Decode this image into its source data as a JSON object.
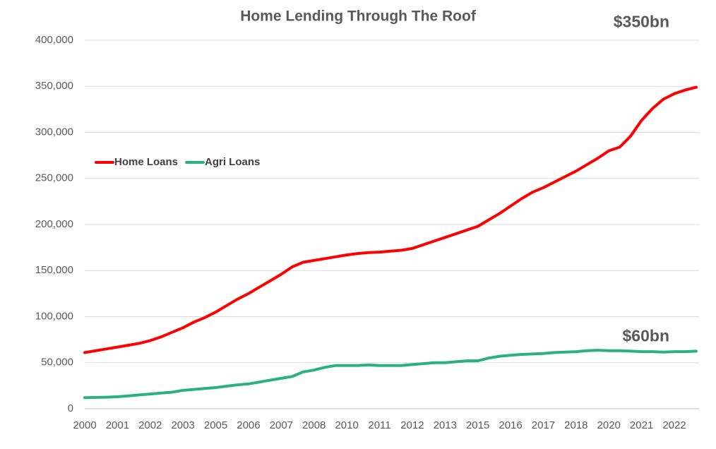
{
  "chart_data": {
    "type": "line",
    "title": "Home  Lending Through The Roof",
    "categories": [
      "2000",
      null,
      null,
      "2001",
      null,
      null,
      "2002",
      null,
      null,
      "2003",
      null,
      null,
      "2005",
      null,
      null,
      "2006",
      null,
      null,
      "2007",
      null,
      null,
      "2008",
      null,
      null,
      "2010",
      null,
      null,
      "2011",
      null,
      null,
      "2012",
      null,
      null,
      "2013",
      null,
      null,
      "2015",
      null,
      null,
      "2016",
      null,
      null,
      "2017",
      null,
      null,
      "2018",
      null,
      null,
      "2020",
      null,
      null,
      "2021",
      null,
      null,
      "2022",
      null,
      null
    ],
    "series": [
      {
        "name": "Home Loans",
        "color": "#ff0000",
        "values": [
          61000,
          63000,
          65000,
          67000,
          69000,
          71000,
          74000,
          78000,
          83000,
          88000,
          94000,
          99000,
          105000,
          112000,
          119000,
          125000,
          132000,
          139000,
          146000,
          154000,
          159000,
          161000,
          163000,
          165000,
          167000,
          168500,
          169500,
          170000,
          171000,
          172000,
          174000,
          178000,
          182000,
          186000,
          190000,
          194000,
          198000,
          205000,
          212000,
          220000,
          228000,
          235000,
          240000,
          246000,
          252000,
          258000,
          265000,
          272000,
          280000,
          284000,
          296000,
          313000,
          326000,
          336000,
          342000,
          346000,
          349000
        ]
      },
      {
        "name": "Agri Loans",
        "color": "#2ab085",
        "values": [
          12000,
          12300,
          12600,
          13000,
          14000,
          15000,
          16000,
          17000,
          18000,
          20000,
          21000,
          22000,
          23000,
          24500,
          26000,
          27000,
          29000,
          31000,
          33000,
          35000,
          40000,
          42000,
          45000,
          47000,
          47000,
          47000,
          47500,
          47000,
          47000,
          47000,
          48000,
          49000,
          50000,
          50000,
          51000,
          52000,
          52000,
          55000,
          57000,
          58000,
          59000,
          59500,
          60000,
          61000,
          61500,
          62000,
          63000,
          63500,
          63000,
          63000,
          62500,
          62000,
          62000,
          61500,
          62000,
          62000,
          62500
        ]
      }
    ],
    "annotations": [
      "$350bn",
      "$60bn"
    ],
    "ylim": [
      0,
      400000
    ],
    "yticks": [
      0,
      {
        "value": 50000,
        "label": "50,000"
      },
      {
        "value": 100000,
        "label": "100,000"
      },
      {
        "value": 150000,
        "label": "150,000"
      },
      {
        "value": 200000,
        "label": "200,000"
      },
      {
        "value": 250000,
        "label": "250,000"
      },
      {
        "value": 300000,
        "label": "300,000"
      },
      {
        "value": 350000,
        "label": "350,000"
      },
      {
        "value": 400000,
        "label": "400,000"
      }
    ],
    "grid": true,
    "legend": "left"
  }
}
